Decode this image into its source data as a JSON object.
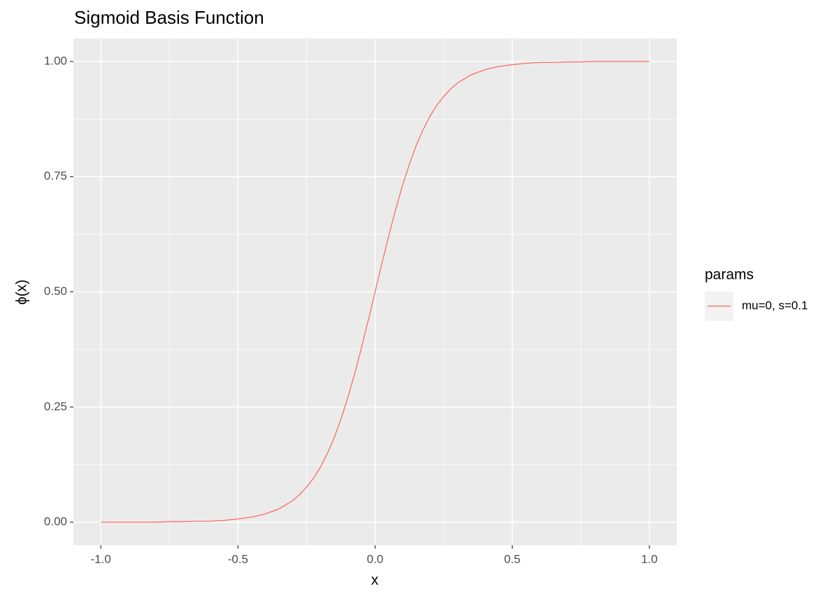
{
  "chart_data": {
    "type": "line",
    "title": "Sigmoid Basis Function",
    "x_label": "x",
    "y_label": "ϕ(x)",
    "legend_title": "params",
    "legend_position": "right",
    "grid": true,
    "x": [
      -1,
      -0.95,
      -0.9,
      -0.85,
      -0.8,
      -0.75,
      -0.7,
      -0.65,
      -0.6,
      -0.55,
      -0.5,
      -0.45,
      -0.4,
      -0.35,
      -0.3,
      -0.275,
      -0.25,
      -0.225,
      -0.2,
      -0.175,
      -0.15,
      -0.125,
      -0.1,
      -0.075,
      -0.05,
      -0.025,
      0,
      0.025,
      0.05,
      0.075,
      0.1,
      0.125,
      0.15,
      0.175,
      0.2,
      0.225,
      0.25,
      0.275,
      0.3,
      0.35,
      0.4,
      0.45,
      0.5,
      0.55,
      0.6,
      0.65,
      0.7,
      0.75,
      0.8,
      0.85,
      0.9,
      0.95,
      1
    ],
    "series": [
      {
        "name": "mu=0, s=0.1",
        "color": "#F8766D",
        "values": [
          0,
          0,
          0,
          0,
          0,
          0.001,
          0.001,
          0.002,
          0.002,
          0.004,
          0.007,
          0.011,
          0.018,
          0.029,
          0.047,
          0.06,
          0.076,
          0.095,
          0.119,
          0.148,
          0.182,
          0.223,
          0.269,
          0.321,
          0.378,
          0.438,
          0.5,
          0.562,
          0.622,
          0.679,
          0.731,
          0.777,
          0.818,
          0.852,
          0.881,
          0.905,
          0.924,
          0.94,
          0.953,
          0.971,
          0.982,
          0.989,
          0.993,
          0.996,
          0.998,
          0.998,
          0.999,
          0.999,
          1,
          1,
          1,
          1,
          1
        ]
      }
    ],
    "xlim": [
      -1.1,
      1.1
    ],
    "ylim": [
      -0.05,
      1.05
    ],
    "xticks": [
      {
        "value": -1,
        "label": "-1.0"
      },
      {
        "value": -0.5,
        "label": "-0.5"
      },
      {
        "value": 0,
        "label": "0.0"
      },
      {
        "value": 0.5,
        "label": "0.5"
      },
      {
        "value": 1,
        "label": "1.0"
      }
    ],
    "yticks": [
      {
        "value": 0,
        "label": "0.00"
      },
      {
        "value": 0.25,
        "label": "0.25"
      },
      {
        "value": 0.5,
        "label": "0.50"
      },
      {
        "value": 0.75,
        "label": "0.75"
      },
      {
        "value": 1,
        "label": "1.00"
      }
    ],
    "x_minor_ticks": [
      -0.75,
      -0.25,
      0.25,
      0.75
    ],
    "y_minor_ticks": [
      0.125,
      0.375,
      0.625,
      0.875
    ]
  }
}
